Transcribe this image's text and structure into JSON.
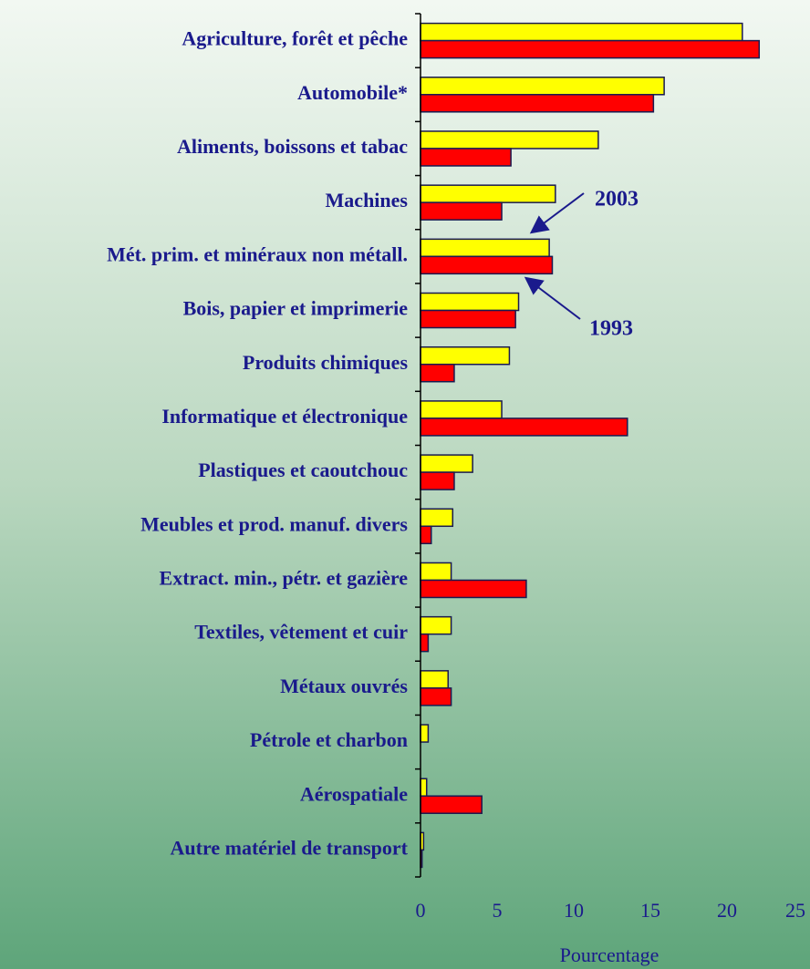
{
  "chart_data": {
    "type": "hbar",
    "categories": [
      "Agriculture, forêt et pêche",
      "Automobile*",
      "Aliments, boissons et tabac",
      "Machines",
      "Mét. prim. et minéraux non métall.",
      "Bois, papier et imprimerie",
      "Produits chimiques",
      "Informatique et électronique",
      "Plastiques et caoutchouc",
      "Meubles et prod. manuf. divers",
      "Extract. min., pétr. et gazière",
      "Textiles, vêtement et cuir",
      "Métaux ouvrés",
      "Pétrole et charbon",
      "Aérospatiale",
      "Autre matériel de transport"
    ],
    "series": [
      {
        "name": "2003",
        "color": "#ffff00",
        "values": [
          21.0,
          15.9,
          11.6,
          8.8,
          8.4,
          6.4,
          5.8,
          5.3,
          3.4,
          2.1,
          2.0,
          2.0,
          1.8,
          0.5,
          0.4,
          0.2
        ]
      },
      {
        "name": "1993",
        "color": "#ff0000",
        "values": [
          22.1,
          15.2,
          5.9,
          5.3,
          8.6,
          6.2,
          2.2,
          13.5,
          2.2,
          0.7,
          6.9,
          0.5,
          2.0,
          0,
          4.0,
          0.1
        ]
      }
    ],
    "xlim": [
      0,
      25
    ],
    "xticks": [
      0,
      5,
      10,
      15,
      20,
      25
    ],
    "xlabel": "Pourcentage"
  }
}
